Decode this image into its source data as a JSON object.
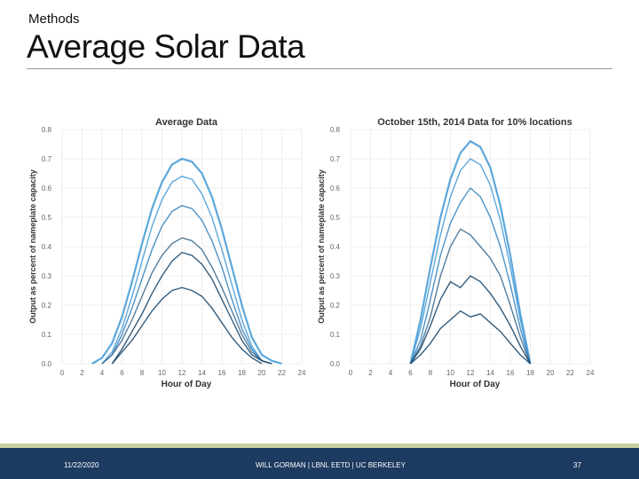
{
  "slide": {
    "section": "Methods",
    "title": "Average Solar Data",
    "footer": {
      "date": "11/22/2020",
      "author": "WILL GORMAN | LBNL EETD | UC BERKELEY",
      "page": "37"
    }
  },
  "colors": {
    "footer_bg": "#1d3a60",
    "footer_accent": "#c9d0a0",
    "line_light": "#4a9fd8",
    "line_dark": "#1e4a6e"
  },
  "chart_data": [
    {
      "type": "line",
      "title": "Average Data",
      "xlabel": "Hour of Day",
      "ylabel": "Output as percent of nameplate capacity",
      "xlim": [
        0,
        24
      ],
      "ylim": [
        0,
        0.8
      ],
      "xticks": [
        0,
        2,
        4,
        6,
        8,
        10,
        12,
        14,
        16,
        18,
        20,
        22,
        24
      ],
      "yticks": [
        0.0,
        0.1,
        0.2,
        0.3,
        0.4,
        0.5,
        0.6,
        0.7,
        0.8
      ],
      "grid": true,
      "series": [
        {
          "x": [
            3,
            4,
            5,
            6,
            7,
            8,
            9,
            10,
            11,
            12,
            13,
            14,
            15,
            16,
            17,
            18,
            19,
            20,
            21,
            22
          ],
          "y": [
            0,
            0.02,
            0.07,
            0.16,
            0.28,
            0.41,
            0.53,
            0.62,
            0.68,
            0.7,
            0.69,
            0.65,
            0.57,
            0.46,
            0.33,
            0.2,
            0.09,
            0.03,
            0.01,
            0
          ]
        },
        {
          "x": [
            4,
            5,
            6,
            7,
            8,
            9,
            10,
            11,
            12,
            13,
            14,
            15,
            16,
            17,
            18,
            19,
            20,
            21
          ],
          "y": [
            0,
            0.04,
            0.12,
            0.23,
            0.35,
            0.47,
            0.56,
            0.62,
            0.64,
            0.63,
            0.58,
            0.5,
            0.39,
            0.27,
            0.15,
            0.06,
            0.01,
            0
          ]
        },
        {
          "x": [
            4,
            5,
            6,
            7,
            8,
            9,
            10,
            11,
            12,
            13,
            14,
            15,
            16,
            17,
            18,
            19,
            20,
            21
          ],
          "y": [
            0,
            0.03,
            0.1,
            0.19,
            0.29,
            0.39,
            0.47,
            0.52,
            0.54,
            0.53,
            0.49,
            0.42,
            0.33,
            0.22,
            0.12,
            0.05,
            0.01,
            0
          ]
        },
        {
          "x": [
            4,
            5,
            6,
            7,
            8,
            9,
            10,
            11,
            12,
            13,
            14,
            15,
            16,
            17,
            18,
            19,
            20,
            21
          ],
          "y": [
            0,
            0.03,
            0.08,
            0.15,
            0.23,
            0.31,
            0.37,
            0.41,
            0.43,
            0.42,
            0.39,
            0.33,
            0.26,
            0.18,
            0.1,
            0.04,
            0.01,
            0
          ]
        },
        {
          "x": [
            5,
            6,
            7,
            8,
            9,
            10,
            11,
            12,
            13,
            14,
            15,
            16,
            17,
            18,
            19,
            20,
            21
          ],
          "y": [
            0,
            0.05,
            0.11,
            0.17,
            0.24,
            0.3,
            0.35,
            0.38,
            0.37,
            0.34,
            0.29,
            0.22,
            0.15,
            0.08,
            0.03,
            0.01,
            0
          ]
        },
        {
          "x": [
            5,
            6,
            7,
            8,
            9,
            10,
            11,
            12,
            13,
            14,
            15,
            16,
            17,
            18,
            19,
            20
          ],
          "y": [
            0,
            0.04,
            0.08,
            0.13,
            0.18,
            0.22,
            0.25,
            0.26,
            0.25,
            0.23,
            0.19,
            0.14,
            0.09,
            0.05,
            0.02,
            0
          ]
        }
      ]
    },
    {
      "type": "line",
      "title": "October 15th, 2014 Data for 10% locations",
      "xlabel": "Hour of Day",
      "ylabel": "Output as percent of nameplate capacity",
      "xlim": [
        0,
        24
      ],
      "ylim": [
        0,
        0.8
      ],
      "xticks": [
        0,
        2,
        4,
        6,
        8,
        10,
        12,
        14,
        16,
        18,
        20,
        22,
        24
      ],
      "yticks": [
        0.0,
        0.1,
        0.2,
        0.3,
        0.4,
        0.5,
        0.6,
        0.7,
        0.8
      ],
      "grid": true,
      "series": [
        {
          "x": [
            6,
            7,
            8,
            9,
            10,
            11,
            12,
            13,
            14,
            15,
            16,
            17,
            18
          ],
          "y": [
            0,
            0.15,
            0.33,
            0.5,
            0.63,
            0.72,
            0.76,
            0.74,
            0.67,
            0.54,
            0.37,
            0.17,
            0
          ]
        },
        {
          "x": [
            6,
            7,
            8,
            9,
            10,
            11,
            12,
            13,
            14,
            15,
            16,
            17,
            18
          ],
          "y": [
            0,
            0.12,
            0.28,
            0.44,
            0.57,
            0.66,
            0.7,
            0.68,
            0.61,
            0.49,
            0.33,
            0.15,
            0
          ]
        },
        {
          "x": [
            6,
            7,
            8,
            9,
            10,
            11,
            12,
            13,
            14,
            15,
            16,
            17,
            18
          ],
          "y": [
            0,
            0.08,
            0.22,
            0.37,
            0.48,
            0.55,
            0.6,
            0.57,
            0.5,
            0.4,
            0.27,
            0.12,
            0
          ]
        },
        {
          "x": [
            6,
            7,
            8,
            9,
            10,
            11,
            12,
            13,
            14,
            15,
            16,
            17,
            18
          ],
          "y": [
            0,
            0.06,
            0.16,
            0.3,
            0.4,
            0.46,
            0.44,
            0.4,
            0.36,
            0.3,
            0.2,
            0.09,
            0
          ]
        },
        {
          "x": [
            6,
            7,
            8,
            9,
            10,
            11,
            12,
            13,
            14,
            15,
            16,
            17,
            18
          ],
          "y": [
            0,
            0.05,
            0.13,
            0.22,
            0.28,
            0.26,
            0.3,
            0.28,
            0.24,
            0.19,
            0.13,
            0.06,
            0
          ]
        },
        {
          "x": [
            6,
            7,
            8,
            9,
            10,
            11,
            12,
            13,
            14,
            15,
            16,
            17,
            18
          ],
          "y": [
            0,
            0.03,
            0.07,
            0.12,
            0.15,
            0.18,
            0.16,
            0.17,
            0.14,
            0.11,
            0.07,
            0.03,
            0
          ]
        }
      ]
    }
  ]
}
